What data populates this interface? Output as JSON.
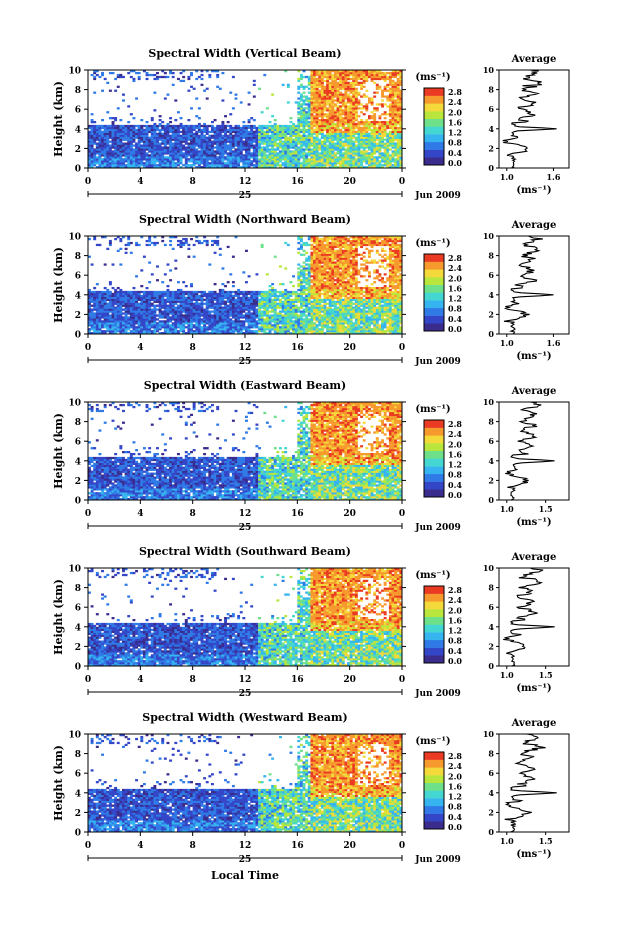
{
  "footer": {
    "xlabel": "Local Time"
  },
  "colorbar": {
    "unit_label": "(ms⁻¹)",
    "ticks": [
      "0.0",
      "0.4",
      "0.8",
      "1.2",
      "1.6",
      "2.0",
      "2.4",
      "2.8"
    ],
    "colors": [
      "#3a2c8c",
      "#3446c8",
      "#2f7ae6",
      "#35b4f0",
      "#44d6d0",
      "#6ee08a",
      "#b8e63c",
      "#f3d93a",
      "#f79a2e",
      "#ea3b22"
    ]
  },
  "chart_data": [
    {
      "type": "heatmap",
      "title": "Spectral Width (Vertical Beam)",
      "ylabel": "Height (km)",
      "ylim": [
        0,
        10
      ],
      "y_ticks": [
        "0",
        "2",
        "4",
        "6",
        "8",
        "10"
      ],
      "x_ticks": [
        "0",
        "4",
        "8",
        "12",
        "16",
        "20",
        "0"
      ],
      "xlim": [
        0,
        24
      ],
      "day_label": "25",
      "date_label": "Jun 2009",
      "average": {
        "title": "Average",
        "xlabel": "(ms⁻¹)",
        "x_ticks": [
          "1.0",
          "1.6"
        ],
        "xlim": [
          0.9,
          1.8
        ],
        "ylim": [
          0,
          10
        ],
        "y_ticks": [
          "0",
          "2",
          "4",
          "6",
          "8",
          "10"
        ]
      }
    },
    {
      "type": "heatmap",
      "title": "Spectral Width (Northward Beam)",
      "ylabel": "Height (km)",
      "ylim": [
        0,
        10
      ],
      "y_ticks": [
        "0",
        "2",
        "4",
        "6",
        "8",
        "10"
      ],
      "x_ticks": [
        "0",
        "4",
        "8",
        "12",
        "16",
        "20",
        "0"
      ],
      "xlim": [
        0,
        24
      ],
      "day_label": "25",
      "date_label": "Jun 2009",
      "average": {
        "title": "Average",
        "xlabel": "(ms⁻¹)",
        "x_ticks": [
          "1.0",
          "1.6"
        ],
        "xlim": [
          0.9,
          1.8
        ],
        "ylim": [
          0,
          10
        ],
        "y_ticks": [
          "0",
          "2",
          "4",
          "6",
          "8",
          "10"
        ]
      }
    },
    {
      "type": "heatmap",
      "title": "Spectral Width (Eastward Beam)",
      "ylabel": "Height (km)",
      "ylim": [
        0,
        10
      ],
      "y_ticks": [
        "0",
        "2",
        "4",
        "6",
        "8",
        "10"
      ],
      "x_ticks": [
        "0",
        "4",
        "8",
        "12",
        "16",
        "20",
        "0"
      ],
      "xlim": [
        0,
        24
      ],
      "day_label": "25",
      "date_label": "Jun 2009",
      "average": {
        "title": "Average",
        "xlabel": "(ms⁻¹)",
        "x_ticks": [
          "1.0",
          "1.5"
        ],
        "xlim": [
          0.9,
          1.8
        ],
        "ylim": [
          0,
          10
        ],
        "y_ticks": [
          "0",
          "2",
          "4",
          "6",
          "8",
          "10"
        ]
      }
    },
    {
      "type": "heatmap",
      "title": "Spectral Width (Southward Beam)",
      "ylabel": "Height (km)",
      "ylim": [
        0,
        10
      ],
      "y_ticks": [
        "0",
        "2",
        "4",
        "6",
        "8",
        "10"
      ],
      "x_ticks": [
        "0",
        "4",
        "8",
        "12",
        "16",
        "20",
        "0"
      ],
      "xlim": [
        0,
        24
      ],
      "day_label": "25",
      "date_label": "Jun 2009",
      "average": {
        "title": "Average",
        "xlabel": "(ms⁻¹)",
        "x_ticks": [
          "1.0",
          "1.5"
        ],
        "xlim": [
          0.9,
          1.8
        ],
        "ylim": [
          0,
          10
        ],
        "y_ticks": [
          "0",
          "2",
          "4",
          "6",
          "8",
          "10"
        ]
      }
    },
    {
      "type": "heatmap",
      "title": "Spectral Width (Westward Beam)",
      "ylabel": "Height (km)",
      "ylim": [
        0,
        10
      ],
      "y_ticks": [
        "0",
        "2",
        "4",
        "6",
        "8",
        "10"
      ],
      "x_ticks": [
        "0",
        "4",
        "8",
        "12",
        "16",
        "20",
        "0"
      ],
      "xlim": [
        0,
        24
      ],
      "day_label": "25",
      "date_label": "Jun 2009",
      "average": {
        "title": "Average",
        "xlabel": "(ms⁻¹)",
        "x_ticks": [
          "1.0",
          "1.5"
        ],
        "xlim": [
          0.9,
          1.8
        ],
        "ylim": [
          0,
          10
        ],
        "y_ticks": [
          "0",
          "2",
          "4",
          "6",
          "8",
          "10"
        ]
      }
    }
  ]
}
